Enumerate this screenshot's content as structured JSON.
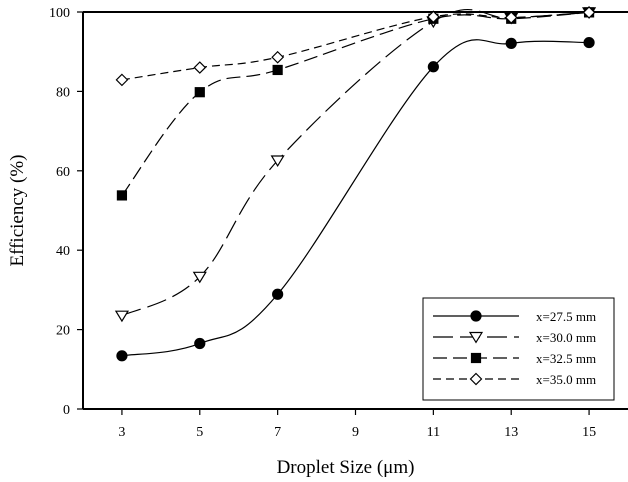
{
  "chart_data": {
    "type": "line",
    "xlabel": "Droplet Size (μm)",
    "ylabel": "Efficiency (%)",
    "x": [
      3,
      5,
      7,
      9,
      11,
      13,
      15
    ],
    "x_tick_labels": [
      "3",
      "5",
      "7",
      "9",
      "11",
      "13",
      "15"
    ],
    "xlim": [
      2,
      16
    ],
    "ylim": [
      0,
      100
    ],
    "y_ticks": [
      0,
      20,
      40,
      60,
      80,
      100
    ],
    "grid": false,
    "legend_position": "bottom-right",
    "series": [
      {
        "name": "x=27.5 mm",
        "marker": "filled-circle",
        "dash": "solid",
        "x": [
          3,
          5,
          7,
          11,
          13,
          15
        ],
        "values": [
          13.4,
          16.5,
          28.9,
          86.2,
          92.1,
          92.3
        ]
      },
      {
        "name": "x=30.0 mm",
        "marker": "open-triangle-down",
        "dash": "long-dash",
        "x": [
          3,
          5,
          7,
          11,
          13,
          15
        ],
        "values": [
          23.5,
          33.3,
          62.6,
          97.6,
          98.5,
          99.9
        ]
      },
      {
        "name": "x=32.5 mm",
        "marker": "filled-square",
        "dash": "medium-dash",
        "x": [
          3,
          5,
          7,
          11,
          13,
          15
        ],
        "values": [
          53.8,
          79.8,
          85.4,
          98.3,
          98.3,
          99.9
        ]
      },
      {
        "name": "x=35.0 mm",
        "marker": "open-diamond",
        "dash": "short-dash",
        "x": [
          3,
          5,
          7,
          11,
          13,
          15
        ],
        "values": [
          82.9,
          86.0,
          88.6,
          98.8,
          98.6,
          99.9
        ]
      }
    ]
  }
}
